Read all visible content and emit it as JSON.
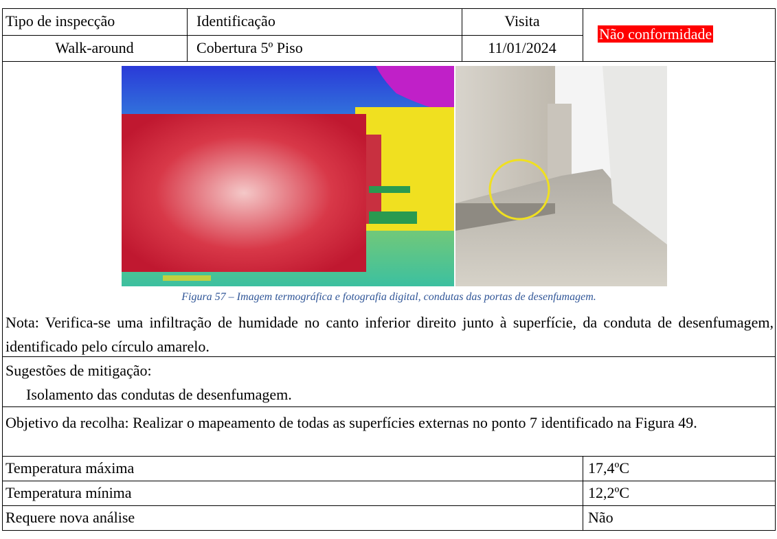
{
  "header": {
    "columns": [
      "Tipo de inspecção",
      "Identificação",
      "Visita"
    ],
    "values": [
      "Walk-around",
      "Cobertura 5º Piso",
      "11/01/2024"
    ],
    "status": "Não conformidade"
  },
  "figure": {
    "caption": "Figura 57 – Imagem termográfica e fotografia digital, condutas das portas de desenfumagem."
  },
  "note": "Nota: Verifica-se uma infiltração de humidade no canto inferior direito junto à superfície, da conduta de desenfumagem, identificado pelo círculo amarelo.",
  "mitigation": {
    "title": "Sugestões de mitigação:",
    "text": "Isolamento das condutas de desenfumagem."
  },
  "objective": "Objetivo da recolha: Realizar o mapeamento de todas as superfícies externas no ponto 7 identificado na Figura 49.",
  "measurements": [
    [
      "Temperatura máxima",
      "17,4ºC"
    ],
    [
      "Temperatura mínima",
      "12,2ºC"
    ],
    [
      "Requere nova análise",
      "Não"
    ]
  ]
}
